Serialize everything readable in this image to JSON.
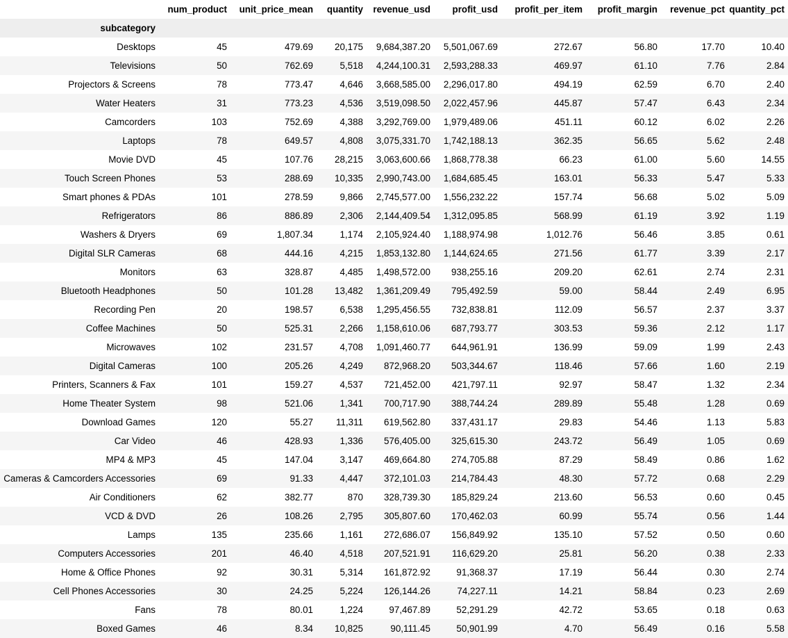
{
  "table": {
    "columns": [
      "num_product",
      "unit_price_mean",
      "quantity",
      "revenue_usd",
      "profit_usd",
      "profit_per_item",
      "profit_margin",
      "revenue_pct",
      "quantity_pct"
    ],
    "index_name": "subcategory",
    "rows": [
      {
        "name": "Desktops",
        "values": [
          "45",
          "479.69",
          "20,175",
          "9,684,387.20",
          "5,501,067.69",
          "272.67",
          "56.80",
          "17.70",
          "10.40"
        ]
      },
      {
        "name": "Televisions",
        "values": [
          "50",
          "762.69",
          "5,518",
          "4,244,100.31",
          "2,593,288.33",
          "469.97",
          "61.10",
          "7.76",
          "2.84"
        ]
      },
      {
        "name": "Projectors & Screens",
        "values": [
          "78",
          "773.47",
          "4,646",
          "3,668,585.00",
          "2,296,017.80",
          "494.19",
          "62.59",
          "6.70",
          "2.40"
        ]
      },
      {
        "name": "Water Heaters",
        "values": [
          "31",
          "773.23",
          "4,536",
          "3,519,098.50",
          "2,022,457.96",
          "445.87",
          "57.47",
          "6.43",
          "2.34"
        ]
      },
      {
        "name": "Camcorders",
        "values": [
          "103",
          "752.69",
          "4,388",
          "3,292,769.00",
          "1,979,489.06",
          "451.11",
          "60.12",
          "6.02",
          "2.26"
        ]
      },
      {
        "name": "Laptops",
        "values": [
          "78",
          "649.57",
          "4,808",
          "3,075,331.70",
          "1,742,188.13",
          "362.35",
          "56.65",
          "5.62",
          "2.48"
        ]
      },
      {
        "name": "Movie DVD",
        "values": [
          "45",
          "107.76",
          "28,215",
          "3,063,600.66",
          "1,868,778.38",
          "66.23",
          "61.00",
          "5.60",
          "14.55"
        ]
      },
      {
        "name": "Touch Screen Phones",
        "values": [
          "53",
          "288.69",
          "10,335",
          "2,990,743.00",
          "1,684,685.45",
          "163.01",
          "56.33",
          "5.47",
          "5.33"
        ]
      },
      {
        "name": "Smart phones & PDAs",
        "values": [
          "101",
          "278.59",
          "9,866",
          "2,745,577.00",
          "1,556,232.22",
          "157.74",
          "56.68",
          "5.02",
          "5.09"
        ]
      },
      {
        "name": "Refrigerators",
        "values": [
          "86",
          "886.89",
          "2,306",
          "2,144,409.54",
          "1,312,095.85",
          "568.99",
          "61.19",
          "3.92",
          "1.19"
        ]
      },
      {
        "name": "Washers & Dryers",
        "values": [
          "69",
          "1,807.34",
          "1,174",
          "2,105,924.40",
          "1,188,974.98",
          "1,012.76",
          "56.46",
          "3.85",
          "0.61"
        ]
      },
      {
        "name": "Digital SLR Cameras",
        "values": [
          "68",
          "444.16",
          "4,215",
          "1,853,132.80",
          "1,144,624.65",
          "271.56",
          "61.77",
          "3.39",
          "2.17"
        ]
      },
      {
        "name": "Monitors",
        "values": [
          "63",
          "328.87",
          "4,485",
          "1,498,572.00",
          "938,255.16",
          "209.20",
          "62.61",
          "2.74",
          "2.31"
        ]
      },
      {
        "name": "Bluetooth Headphones",
        "values": [
          "50",
          "101.28",
          "13,482",
          "1,361,209.49",
          "795,492.59",
          "59.00",
          "58.44",
          "2.49",
          "6.95"
        ]
      },
      {
        "name": "Recording Pen",
        "values": [
          "20",
          "198.57",
          "6,538",
          "1,295,456.55",
          "732,838.81",
          "112.09",
          "56.57",
          "2.37",
          "3.37"
        ]
      },
      {
        "name": "Coffee Machines",
        "values": [
          "50",
          "525.31",
          "2,266",
          "1,158,610.06",
          "687,793.77",
          "303.53",
          "59.36",
          "2.12",
          "1.17"
        ]
      },
      {
        "name": "Microwaves",
        "values": [
          "102",
          "231.57",
          "4,708",
          "1,091,460.77",
          "644,961.91",
          "136.99",
          "59.09",
          "1.99",
          "2.43"
        ]
      },
      {
        "name": "Digital Cameras",
        "values": [
          "100",
          "205.26",
          "4,249",
          "872,968.20",
          "503,344.67",
          "118.46",
          "57.66",
          "1.60",
          "2.19"
        ]
      },
      {
        "name": "Printers, Scanners & Fax",
        "values": [
          "101",
          "159.27",
          "4,537",
          "721,452.00",
          "421,797.11",
          "92.97",
          "58.47",
          "1.32",
          "2.34"
        ]
      },
      {
        "name": "Home Theater System",
        "values": [
          "98",
          "521.06",
          "1,341",
          "700,717.90",
          "388,744.24",
          "289.89",
          "55.48",
          "1.28",
          "0.69"
        ]
      },
      {
        "name": "Download Games",
        "values": [
          "120",
          "55.27",
          "11,311",
          "619,562.80",
          "337,431.17",
          "29.83",
          "54.46",
          "1.13",
          "5.83"
        ]
      },
      {
        "name": "Car Video",
        "values": [
          "46",
          "428.93",
          "1,336",
          "576,405.00",
          "325,615.30",
          "243.72",
          "56.49",
          "1.05",
          "0.69"
        ]
      },
      {
        "name": "MP4 & MP3",
        "values": [
          "45",
          "147.04",
          "3,147",
          "469,664.80",
          "274,705.88",
          "87.29",
          "58.49",
          "0.86",
          "1.62"
        ]
      },
      {
        "name": "Cameras & Camcorders Accessories",
        "values": [
          "69",
          "91.33",
          "4,447",
          "372,101.03",
          "214,784.43",
          "48.30",
          "57.72",
          "0.68",
          "2.29"
        ]
      },
      {
        "name": "Air Conditioners",
        "values": [
          "62",
          "382.77",
          "870",
          "328,739.30",
          "185,829.24",
          "213.60",
          "56.53",
          "0.60",
          "0.45"
        ]
      },
      {
        "name": "VCD & DVD",
        "values": [
          "26",
          "108.26",
          "2,795",
          "305,807.60",
          "170,462.03",
          "60.99",
          "55.74",
          "0.56",
          "1.44"
        ]
      },
      {
        "name": "Lamps",
        "values": [
          "135",
          "235.66",
          "1,161",
          "272,686.07",
          "156,849.92",
          "135.10",
          "57.52",
          "0.50",
          "0.60"
        ]
      },
      {
        "name": "Computers Accessories",
        "values": [
          "201",
          "46.40",
          "4,518",
          "207,521.91",
          "116,629.20",
          "25.81",
          "56.20",
          "0.38",
          "2.33"
        ]
      },
      {
        "name": "Home & Office Phones",
        "values": [
          "92",
          "30.31",
          "5,314",
          "161,872.92",
          "91,368.37",
          "17.19",
          "56.44",
          "0.30",
          "2.74"
        ]
      },
      {
        "name": "Cell Phones Accessories",
        "values": [
          "30",
          "24.25",
          "5,224",
          "126,144.26",
          "74,227.11",
          "14.21",
          "58.84",
          "0.23",
          "2.69"
        ]
      },
      {
        "name": "Fans",
        "values": [
          "78",
          "80.01",
          "1,224",
          "97,467.89",
          "52,291.29",
          "42.72",
          "53.65",
          "0.18",
          "0.63"
        ]
      },
      {
        "name": "Boxed Games",
        "values": [
          "46",
          "8.34",
          "10,825",
          "90,111.45",
          "50,901.99",
          "4.70",
          "56.49",
          "0.16",
          "5.58"
        ]
      }
    ]
  }
}
